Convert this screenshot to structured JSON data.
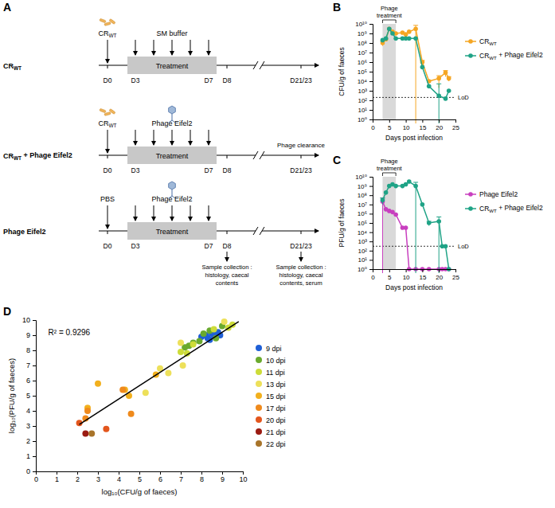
{
  "panel_a": {
    "panel": "A",
    "rows": [
      {
        "label": "CRWT",
        "inoculum": "CRWT",
        "treatment": "SM buffer"
      },
      {
        "label": "CRWT + Phage Eifel2",
        "inoculum": "CRWT",
        "treatment": "Phage Eifel2",
        "annotation": "Phage clearance"
      },
      {
        "label": "Phage Eifel2",
        "inoculum": "PBS",
        "treatment": "Phage Eifel2",
        "sample_collection": [
          [
            "Sample collection :",
            "histology, caecal",
            "contents"
          ],
          [
            "Sample collection :",
            "histology, caecal",
            "contents, serum"
          ]
        ]
      }
    ],
    "treatment_label": "Treatment",
    "timeline_ticks": [
      "D0",
      "D3",
      "D7",
      "D8",
      "D21/23"
    ]
  },
  "chart_data": [
    {
      "type": "line",
      "panel": "B",
      "xlabel": "Days post infection",
      "ylabel": "CFU/g of faeces",
      "log": "y",
      "marker": "circle",
      "legend": "right",
      "xlim": [
        0,
        25
      ],
      "xticks": [
        0,
        5,
        10,
        15,
        20,
        25
      ],
      "ylim": [
        1,
        10000000000.0
      ],
      "yticks": [
        {
          "value": 1,
          "label": "10⁰"
        },
        {
          "value": 10,
          "label": "10¹"
        },
        {
          "value": 100,
          "label": "10²"
        },
        {
          "value": 1000,
          "label": "10³"
        },
        {
          "value": 10000,
          "label": "10⁴"
        },
        {
          "value": 100000,
          "label": "10⁵"
        },
        {
          "value": 1000000,
          "label": "10⁶"
        },
        {
          "value": 10000000,
          "label": "10⁷"
        },
        {
          "value": 100000000,
          "label": "10⁸"
        },
        {
          "value": 1000000000,
          "label": "10⁹"
        },
        {
          "value": 10000000000,
          "label": "10¹⁰"
        }
      ],
      "shaded": {
        "x": [
          3,
          7
        ],
        "label": "Phage treatment"
      },
      "lod": {
        "value": 200,
        "label": "LoD"
      },
      "x": [
        3,
        4,
        5,
        6,
        7,
        9,
        10,
        11,
        13,
        15,
        17,
        20,
        22,
        23
      ],
      "series": [
        {
          "name": "CRWT",
          "color": "#f5a623",
          "values": [
            100000000.0,
            250000000.0,
            3000000000.0,
            1500000000.0,
            1000000000.0,
            1200000000.0,
            800000000.0,
            1500000000.0,
            3000000000.0,
            1000000.0,
            10000.0,
            20000.0,
            80000.0,
            20000.0
          ],
          "errors": [
            50000000.0,
            null,
            null,
            null,
            null,
            null,
            null,
            null,
            4000000000.0,
            500000.0,
            null,
            18000.0,
            50000.0,
            10000.0
          ]
        },
        {
          "name": "CRWT + Phage Eifel2",
          "color": "#1fa386",
          "values": [
            200000000.0,
            300000000.0,
            3000000000.0,
            1000000000.0,
            300000000.0,
            300000000.0,
            300000000.0,
            300000000.0,
            300000000.0,
            300000.0,
            3000.0,
            300.0,
            150.0,
            1000.0
          ],
          "errors": [
            null,
            null,
            null,
            null,
            null,
            null,
            null,
            null,
            null,
            null,
            null,
            5000.0,
            null,
            null
          ]
        }
      ]
    },
    {
      "type": "line",
      "panel": "C",
      "xlabel": "Days post infection",
      "ylabel": "PFU/g of faeces",
      "log": "y",
      "marker": "circle",
      "legend": "right",
      "xlim": [
        0,
        25
      ],
      "xticks": [
        0,
        5,
        10,
        15,
        20,
        25
      ],
      "ylim": [
        1,
        10000000000.0
      ],
      "yticks": [
        {
          "value": 1,
          "label": "10⁰"
        },
        {
          "value": 10,
          "label": "10¹"
        },
        {
          "value": 100,
          "label": "10²"
        },
        {
          "value": 1000,
          "label": "10³"
        },
        {
          "value": 10000,
          "label": "10⁴"
        },
        {
          "value": 100000,
          "label": "10⁵"
        },
        {
          "value": 1000000,
          "label": "10⁶"
        },
        {
          "value": 10000000,
          "label": "10⁷"
        },
        {
          "value": 100000000,
          "label": "10⁸"
        },
        {
          "value": 1000000000,
          "label": "10⁹"
        },
        {
          "value": 10000000000,
          "label": "10¹⁰"
        }
      ],
      "shaded": {
        "x": [
          3,
          7
        ],
        "label": "Phage treatment"
      },
      "lod": {
        "value": 300,
        "label": "LoD"
      },
      "x": [
        3,
        4,
        5,
        6,
        7,
        9,
        10,
        11,
        13,
        15,
        17,
        20,
        21,
        22,
        23
      ],
      "series": [
        {
          "name": "Phage Eifel2",
          "color": "#c83fbf",
          "values": [
            20000000.0,
            3000000.0,
            2000000.0,
            1500000.0,
            800000.0,
            30000.0,
            30000.0,
            1,
            1,
            1,
            1,
            1,
            1,
            1,
            1
          ],
          "errors": [
            30000000.0,
            null,
            null,
            null,
            null,
            null,
            null,
            null,
            null,
            null,
            null,
            null,
            null,
            null,
            null
          ]
        },
        {
          "name": "CRWT + Phage Eifel2",
          "color": "#1fa386",
          "values": [
            30000000.0,
            200000000.0,
            1000000000.0,
            1500000000.0,
            1000000000.0,
            1000000000.0,
            1500000000.0,
            3000000000.0,
            1000000000.0,
            10000000.0,
            100000.0,
            150000.0,
            300.0,
            300.0,
            1
          ],
          "errors": [
            20000000.0,
            null,
            null,
            null,
            null,
            null,
            null,
            null,
            1500000000.0,
            null,
            50000.0,
            300000.0,
            null,
            null,
            null
          ]
        }
      ]
    },
    {
      "type": "scatter",
      "panel": "D",
      "xlabel": "log₁₀(CFU/g of faeces)",
      "ylabel": "log₁₀(PFU/g of faeces)",
      "marker": "circle",
      "legend": "right",
      "xlim": [
        0,
        10
      ],
      "xticks": [
        0,
        1,
        2,
        3,
        4,
        5,
        6,
        7,
        8,
        9,
        10
      ],
      "ylim": [
        0,
        10
      ],
      "yticks": [
        0,
        1,
        2,
        3,
        4,
        5,
        6,
        7,
        8,
        9,
        10
      ],
      "annotation": "R² = 0.9296",
      "fit": {
        "x": [
          2.1,
          9.8
        ],
        "y": [
          3.1,
          9.9
        ]
      },
      "series": [
        {
          "name": "9 dpi",
          "color": "#1f5fd6",
          "x": [
            8.0,
            8.2,
            8.3,
            8.5,
            8.6,
            8.8,
            8.4,
            8.9
          ],
          "values": [
            8.9,
            9.0,
            8.8,
            9.1,
            9.0,
            9.2,
            8.7,
            9.0
          ]
        },
        {
          "name": "10 dpi",
          "color": "#6aaa2e",
          "x": [
            7.4,
            7.6,
            7.9,
            8.4,
            8.7,
            9.0,
            7.2,
            8.1
          ],
          "values": [
            8.3,
            8.5,
            8.6,
            9.3,
            8.8,
            9.6,
            8.2,
            9.1
          ]
        },
        {
          "name": "11 dpi",
          "color": "#cddc39",
          "x": [
            7.0,
            7.3,
            9.5,
            9.3,
            8.6,
            7.6
          ],
          "values": [
            7.9,
            7.8,
            9.7,
            9.5,
            9.4,
            8.4
          ]
        },
        {
          "name": "13 dpi",
          "color": "#ede05a",
          "x": [
            6.0,
            6.4,
            7.1,
            7.0,
            9.1,
            5.3
          ],
          "values": [
            6.8,
            6.5,
            7.0,
            8.5,
            9.9,
            5.2
          ]
        },
        {
          "name": "15 dpi",
          "color": "#f2b01d",
          "x": [
            4.5,
            3.0,
            2.5,
            5.8,
            4.3
          ],
          "values": [
            5.0,
            5.8,
            4.2,
            6.4,
            5.4
          ]
        },
        {
          "name": "17 dpi",
          "color": "#ef8a1c",
          "x": [
            2.4,
            4.2,
            4.6,
            2.5
          ],
          "values": [
            3.5,
            5.4,
            3.8,
            4.0
          ]
        },
        {
          "name": "20 dpi",
          "color": "#e3561d",
          "x": [
            2.1,
            3.4
          ],
          "values": [
            3.2,
            2.8
          ]
        },
        {
          "name": "21 dpi",
          "color": "#9b1b12",
          "x": [
            2.4
          ],
          "values": [
            2.5
          ]
        },
        {
          "name": "22 dpi",
          "color": "#a8742a",
          "x": [
            2.7
          ],
          "values": [
            2.5
          ]
        }
      ]
    }
  ]
}
